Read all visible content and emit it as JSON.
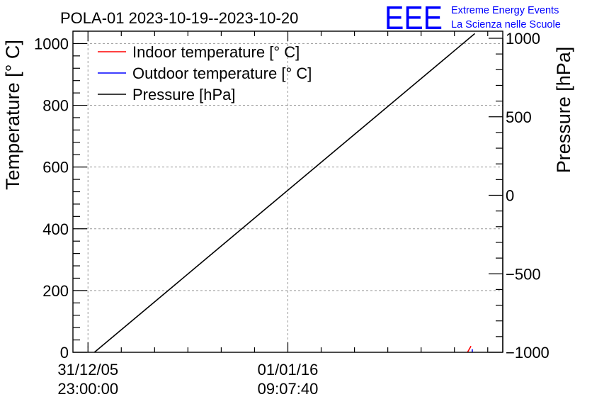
{
  "header": {
    "title": "POLA-01 2023-10-19--2023-10-20",
    "logo_text": "EEE",
    "logo_line1": "Extreme Energy Events",
    "logo_line2": "La Scienza nelle Scuole"
  },
  "colors": {
    "indoor": "#ff0000",
    "outdoor": "#0000ff",
    "pressure": "#000000",
    "logo": "#0000ff",
    "grid": "#9a9a9a"
  },
  "chart_data": {
    "type": "line",
    "title": "POLA-01 2023-10-19--2023-10-20",
    "ylabel": "Temperature [° C]",
    "y2label": "Pressure [hPa]",
    "xlabel": "",
    "ylim": [
      0,
      1040
    ],
    "y2lim": [
      -1000,
      1000
    ],
    "y_ticks": [
      0,
      200,
      400,
      600,
      800,
      1000
    ],
    "y2_ticks": [
      -1000,
      -500,
      0,
      500,
      1000
    ],
    "x_range_fraction": [
      0,
      1
    ],
    "x_ticks": [
      {
        "pos": 0.035,
        "label1": "31/12/05",
        "label2": "23:00:00"
      },
      {
        "pos": 0.5,
        "label1": "01/01/16",
        "label2": "09:07:40"
      }
    ],
    "grid": true,
    "legend_position": "top-left",
    "series": [
      {
        "name": "Indoor temperature [° C]",
        "axis": "left",
        "color": "#ff0000",
        "points": [
          [
            0.918,
            0
          ],
          [
            0.926,
            20
          ]
        ]
      },
      {
        "name": "Outdoor temperature [° C]",
        "axis": "left",
        "color": "#0000ff",
        "points": [
          [
            0.929,
            0
          ],
          [
            0.929,
            10
          ]
        ]
      },
      {
        "name": "Pressure [hPa]",
        "axis": "right",
        "color": "#000000",
        "points": [
          [
            0.05,
            -1000
          ],
          [
            0.935,
            1030
          ]
        ]
      }
    ]
  }
}
